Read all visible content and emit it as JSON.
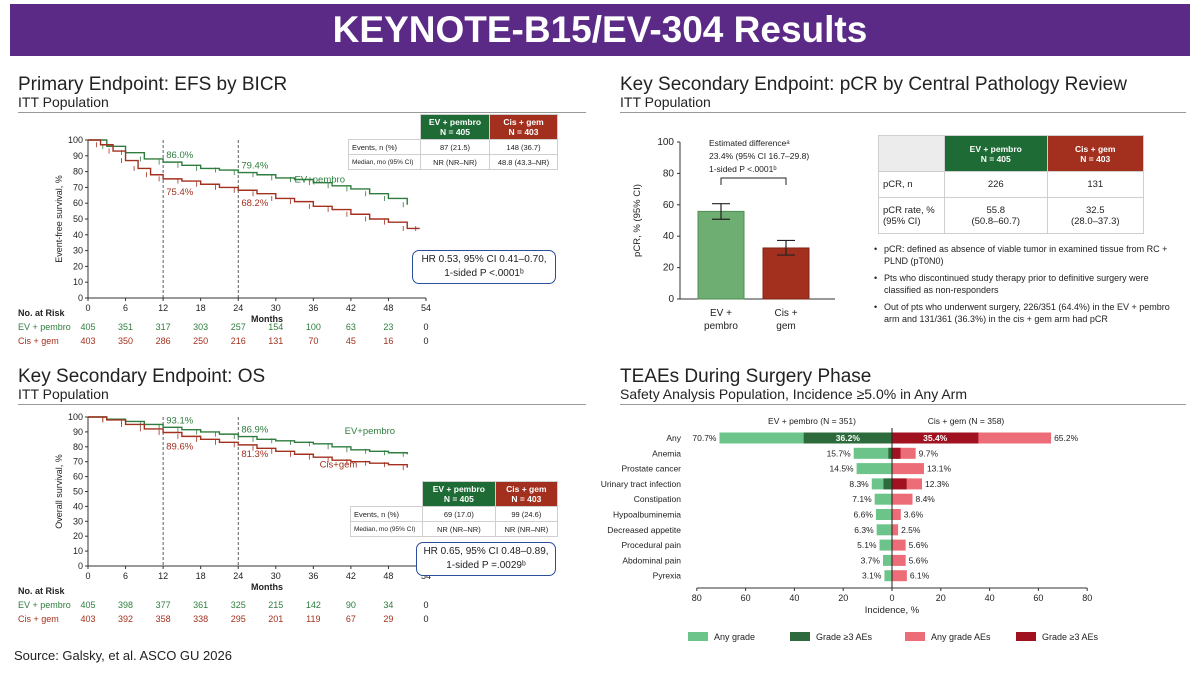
{
  "header": {
    "title": "KEYNOTE-B15/EV-304 Results"
  },
  "efs": {
    "title": "Primary Endpoint: EFS by BICR",
    "subtitle": "ITT Population",
    "ylabel": "Event-free survival, %",
    "xlabel": "Months",
    "annotations": {
      "ev12": "86.0%",
      "ev24": "79.4%",
      "cis12": "75.4%",
      "cis24": "68.2%",
      "ev_label": "EV+pembro"
    },
    "table": {
      "col_ev": "EV + pembro\nN = 405",
      "col_cis": "Cis + gem\nN = 403",
      "rows": [
        {
          "label": "Events, n (%)",
          "ev": "87 (21.5)",
          "cis": "148 (36.7)"
        },
        {
          "label": "Median, mo (95% CI)",
          "ev": "NR (NR–NR)",
          "cis": "48.8 (43.3–NR)"
        }
      ]
    },
    "hr_line1": "HR 0.53, 95% CI 0.41–0.70,",
    "hr_line2": "1-sided P <.0001ᵇ",
    "risk": {
      "title": "No. at Risk",
      "ev_label": "EV + pembro",
      "cis_label": "Cis + gem",
      "ev": [
        "405",
        "351",
        "317",
        "303",
        "257",
        "154",
        "100",
        "63",
        "23",
        "0"
      ],
      "cis": [
        "403",
        "350",
        "286",
        "250",
        "216",
        "131",
        "70",
        "45",
        "16",
        "0"
      ]
    }
  },
  "os": {
    "title": "Key Secondary Endpoint: OS",
    "subtitle": "ITT Population",
    "ylabel": "Overall survival, %",
    "xlabel": "Months",
    "annotations": {
      "ev12": "93.1%",
      "ev24": "86.9%",
      "cis12": "89.6%",
      "cis24": "81.3%",
      "ev_label": "EV+pembro",
      "cis_label": "Cis+gem"
    },
    "table": {
      "col_ev": "EV + pembro\nN = 405",
      "col_cis": "Cis + gem\nN = 403",
      "rows": [
        {
          "label": "Events, n (%)",
          "ev": "69 (17.0)",
          "cis": "99 (24.6)"
        },
        {
          "label": "Median, mo (95% CI)",
          "ev": "NR (NR–NR)",
          "cis": "NR (NR–NR)"
        }
      ]
    },
    "hr_line1": "HR 0.65, 95% CI 0.48–0.89,",
    "hr_line2": "1-sided P =.0029ᵇ",
    "risk": {
      "title": "No. at Risk",
      "ev_label": "EV + pembro",
      "cis_label": "Cis + gem",
      "ev": [
        "405",
        "398",
        "377",
        "361",
        "325",
        "215",
        "142",
        "90",
        "34",
        "0"
      ],
      "cis": [
        "403",
        "392",
        "358",
        "338",
        "295",
        "201",
        "119",
        "67",
        "29",
        "0"
      ]
    }
  },
  "pcr": {
    "title": "Key Secondary Endpoint: pCR by Central Pathology Review",
    "subtitle": "ITT Population",
    "ylabel": "pCR, % (95% CI)",
    "diff_line1": "Estimated differenceᵃ",
    "diff_line2": "23.4% (95% CI 16.7–29.8)",
    "diff_line3": "1-sided P <.0001ᵇ",
    "cat_ev_1": "EV +",
    "cat_ev_2": "pembro",
    "cat_cis_1": "Cis +",
    "cat_cis_2": "gem",
    "table": {
      "col_ev": "EV + pembro\nN = 405",
      "col_cis": "Cis + gem\nN = 403",
      "row1_label": "pCR, n",
      "row1_ev": "226",
      "row1_cis": "131",
      "row2_label_1": "pCR rate, %",
      "row2_label_2": "(95% CI)",
      "row2_ev_1": "55.8",
      "row2_ev_2": "(50.8–60.7)",
      "row2_cis_1": "32.5",
      "row2_cis_2": "(28.0–37.3)"
    },
    "bullets": [
      "pCR: defined as absence of viable tumor in examined tissue from RC + PLND (pT0N0)",
      "Pts who discontinued study therapy prior to definitive surgery were classified as non-responders",
      "Out of pts who underwent surgery, 226/351 (64.4%) in the EV + pembro arm and 131/361 (36.3%) in the cis + gem arm had pCR"
    ]
  },
  "teae": {
    "title": "TEAEs During Surgery Phase",
    "subtitle": "Safety Analysis Population, Incidence ≥5.0% in Any Arm",
    "left_header": "EV + pembro (N = 351)",
    "right_header": "Cis + gem (N = 358)",
    "xlabel": "Incidence, %",
    "legend": [
      "Any grade",
      "Grade ≥3 AEs",
      "Any grade AEs",
      "Grade ≥3 AEs"
    ]
  },
  "colors": {
    "ev": "#2e7d3e",
    "cis": "#a3301e",
    "ev_light": "#6cc48a",
    "ev_dark": "#2e6b3c",
    "cis_light": "#ec6d78",
    "cis_dark": "#a01220",
    "hr_border": "#2b4f9b",
    "banner": "#5b2a86"
  },
  "source": "Source: Galsky, et al.  ASCO GU 2026",
  "chart_data": [
    {
      "type": "line",
      "title": "Primary Endpoint: EFS by BICR",
      "xlabel": "Months",
      "ylabel": "Event-free survival, %",
      "xlim": [
        0,
        54
      ],
      "ylim": [
        0,
        100
      ],
      "x_ticks": [
        0,
        6,
        12,
        18,
        24,
        30,
        36,
        42,
        48,
        54
      ],
      "y_ticks": [
        0,
        10,
        20,
        30,
        40,
        50,
        60,
        70,
        80,
        90,
        100
      ],
      "series": [
        {
          "name": "EV+pembro",
          "x": [
            0,
            3,
            6,
            9,
            12,
            15,
            18,
            21,
            24,
            27,
            30,
            33,
            36,
            39,
            42,
            45,
            48,
            51
          ],
          "y": [
            100,
            96,
            92,
            88,
            86,
            84,
            82,
            81,
            79.4,
            78,
            76,
            75,
            73,
            71,
            69,
            66,
            63,
            59
          ]
        },
        {
          "name": "Cis+gem",
          "x": [
            0,
            2,
            4,
            6,
            8,
            10,
            12,
            15,
            18,
            21,
            24,
            27,
            30,
            33,
            36,
            39,
            42,
            45,
            48,
            51,
            53
          ],
          "y": [
            100,
            97,
            93,
            87,
            82,
            78,
            75.4,
            74,
            72,
            70,
            68.2,
            66,
            63,
            61,
            58,
            56,
            53,
            50,
            48,
            44,
            44
          ]
        }
      ]
    },
    {
      "type": "line",
      "title": "Key Secondary Endpoint: OS",
      "xlabel": "Months",
      "ylabel": "Overall survival, %",
      "xlim": [
        0,
        54
      ],
      "ylim": [
        0,
        100
      ],
      "x_ticks": [
        0,
        6,
        12,
        18,
        24,
        30,
        36,
        42,
        48,
        54
      ],
      "y_ticks": [
        0,
        10,
        20,
        30,
        40,
        50,
        60,
        70,
        80,
        90,
        100
      ],
      "series": [
        {
          "name": "EV+pembro",
          "x": [
            0,
            3,
            6,
            9,
            12,
            15,
            18,
            21,
            24,
            27,
            30,
            33,
            36,
            39,
            42,
            45,
            48,
            51
          ],
          "y": [
            100,
            98.5,
            97,
            95,
            93.1,
            91.5,
            90,
            88.5,
            86.9,
            85,
            84,
            83,
            82,
            80,
            78,
            77,
            76,
            75
          ]
        },
        {
          "name": "Cis+gem",
          "x": [
            0,
            3,
            6,
            9,
            12,
            15,
            18,
            21,
            24,
            27,
            30,
            33,
            36,
            39,
            42,
            45,
            48,
            51
          ],
          "y": [
            100,
            98,
            95,
            92,
            89.6,
            87,
            85,
            83,
            81.3,
            79,
            77,
            75,
            73,
            71,
            70,
            69,
            68,
            66
          ]
        }
      ]
    },
    {
      "type": "bar",
      "title": "Key Secondary Endpoint: pCR by Central Pathology Review",
      "ylabel": "pCR, % (95% CI)",
      "categories": [
        "EV + pembro",
        "Cis + gem"
      ],
      "values": [
        55.8,
        32.5
      ],
      "ci_low": [
        50.8,
        28.0
      ],
      "ci_high": [
        60.7,
        37.3
      ],
      "ylim": [
        0,
        100
      ],
      "y_ticks": [
        0,
        20,
        40,
        60,
        80,
        100
      ]
    },
    {
      "type": "bar",
      "orientation": "horizontal-butterfly",
      "title": "TEAEs During Surgery Phase",
      "xlabel": "Incidence, %",
      "xlim": [
        -80,
        80
      ],
      "x_ticks": [
        80,
        60,
        40,
        20,
        0,
        20,
        40,
        60,
        80
      ],
      "categories": [
        "Any",
        "Anemia",
        "Prostate cancer",
        "Urinary tract infection",
        "Constipation",
        "Hypoalbuminemia",
        "Decreased appetite",
        "Procedural pain",
        "Abdominal pain",
        "Pyrexia"
      ],
      "series": [
        {
          "name": "EV + pembro any grade",
          "values": [
            70.7,
            15.7,
            14.5,
            8.3,
            7.1,
            6.6,
            6.3,
            5.1,
            3.7,
            3.1
          ],
          "labels": [
            "70.7%",
            "15.7%",
            "14.5%",
            "8.3%",
            "7.1%",
            "6.6%",
            "6.3%",
            "5.1%",
            "3.7%",
            "3.1%"
          ]
        },
        {
          "name": "EV + pembro grade ≥3",
          "values": [
            36.2,
            1.5,
            0,
            3.5,
            0,
            0,
            0,
            0,
            0,
            0
          ],
          "labels": [
            "36.2%",
            "",
            "",
            "",
            "",
            "",
            "",
            "",
            "",
            ""
          ]
        },
        {
          "name": "Cis + gem any grade",
          "values": [
            65.2,
            9.7,
            13.1,
            12.3,
            8.4,
            3.6,
            2.5,
            5.6,
            5.6,
            6.1
          ],
          "labels": [
            "65.2%",
            "9.7%",
            "13.1%",
            "12.3%",
            "8.4%",
            "3.6%",
            "2.5%",
            "5.6%",
            "5.6%",
            "6.1%"
          ]
        },
        {
          "name": "Cis + gem grade ≥3",
          "values": [
            35.4,
            3.5,
            0,
            6,
            0,
            0,
            0,
            0,
            0,
            0
          ],
          "labels": [
            "35.4%",
            "",
            "",
            "",
            "",
            "",
            "",
            "",
            "",
            ""
          ]
        }
      ]
    }
  ]
}
